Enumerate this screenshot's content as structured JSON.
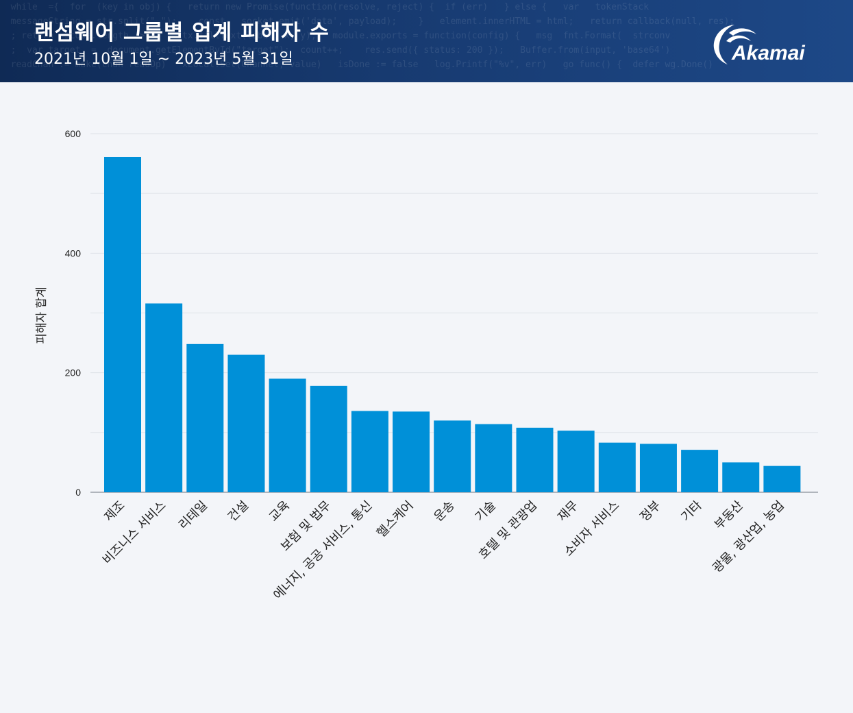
{
  "header": {
    "title": "랜섬웨어 그룹별 업계 피해자 수",
    "subtitle": "2021년 10월 1일 ~ 2023년 5월 31일",
    "logo_text": "Akamai"
  },
  "colors": {
    "bar": "#0090d8",
    "header_bg": "#163668",
    "grid": "#dde1e7",
    "axis_text": "#222222"
  },
  "chart_data": {
    "type": "bar",
    "title": "랜섬웨어 그룹별 업계 피해자 수",
    "subtitle": "2021년 10월 1일 ~ 2023년 5월 31일",
    "xlabel": "",
    "ylabel": "피해자 합계",
    "ylim": [
      0,
      600
    ],
    "yticks": [
      0,
      200,
      400,
      600
    ],
    "grid": true,
    "categories": [
      "제조",
      "비즈니스 서비스",
      "리테일",
      "건설",
      "교육",
      "보험 및 법무",
      "에너지, 공공 서비스, 통신",
      "헬스케어",
      "운송",
      "기술",
      "호텔 및 관광업",
      "재무",
      "소비자 서비스",
      "정부",
      "기타",
      "부동산",
      "광물, 광산업, 농업"
    ],
    "values": [
      561,
      316,
      248,
      230,
      190,
      178,
      136,
      135,
      120,
      114,
      108,
      103,
      83,
      81,
      71,
      50,
      44
    ]
  }
}
